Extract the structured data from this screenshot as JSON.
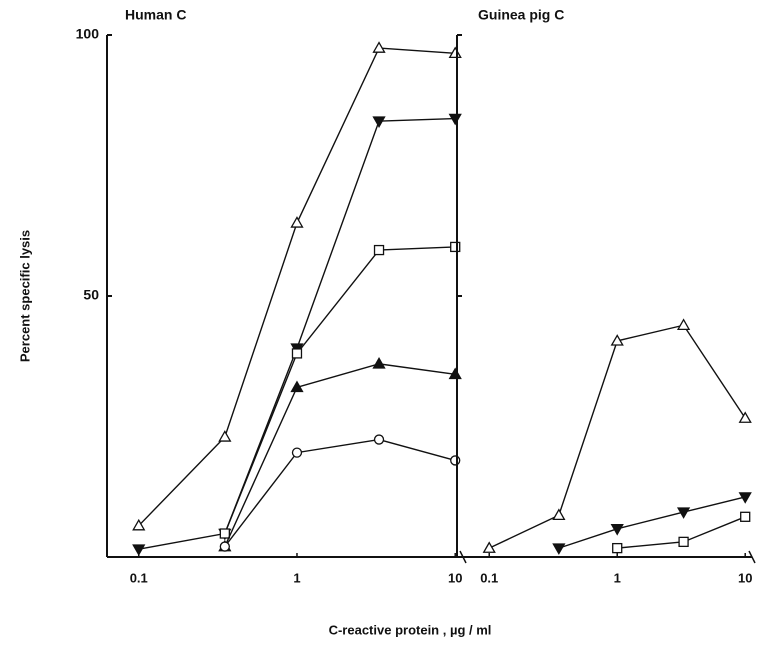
{
  "chart_data": [
    {
      "type": "line",
      "title": "Human C",
      "ylabel": "Percent specific lysis",
      "xlabel": "C-reactive protein , µg / ml",
      "xscale": "log",
      "xlim": [
        0.063,
        11.2
      ],
      "xticks": [
        0.1,
        1,
        10
      ],
      "ylim": [
        0,
        100
      ],
      "yticks": [
        50,
        100
      ],
      "show_ytick_labels": true,
      "x": [
        0.1,
        0.35,
        1,
        3.3,
        10
      ],
      "series": [
        {
          "marker": "triangle-up-open",
          "color": "#111111",
          "values": [
            6,
            23,
            64,
            97.5,
            96.5
          ]
        },
        {
          "marker": "triangle-down-filled",
          "color": "#111111",
          "values": [
            1.5,
            4.5,
            40,
            83.5,
            84
          ]
        },
        {
          "marker": "square-open",
          "color": "#111111",
          "values": [
            null,
            4.5,
            39,
            58.8,
            59.4
          ]
        },
        {
          "marker": "triangle-up-filled",
          "color": "#111111",
          "values": [
            null,
            2,
            32.5,
            37,
            35
          ]
        },
        {
          "marker": "circle-open",
          "color": "#111111",
          "values": [
            null,
            2,
            20,
            22.5,
            18.5
          ]
        }
      ]
    },
    {
      "type": "line",
      "title": "Guinea pig C",
      "xscale": "log",
      "xlim": [
        0.056,
        11.3
      ],
      "xticks": [
        0.1,
        1,
        10
      ],
      "ylim": [
        0,
        100
      ],
      "yticks": [
        50,
        100
      ],
      "show_ytick_labels": false,
      "x": [
        0.1,
        0.35,
        1,
        3.3,
        10
      ],
      "series": [
        {
          "marker": "triangle-up-open",
          "color": "#111111",
          "values": [
            1.7,
            8,
            41.4,
            44.4,
            26.6
          ]
        },
        {
          "marker": "triangle-down-filled",
          "color": "#111111",
          "values": [
            null,
            1.7,
            5.4,
            8.6,
            11.5
          ]
        },
        {
          "marker": "square-open",
          "color": "#111111",
          "values": [
            null,
            null,
            1.7,
            2.9,
            7.7
          ]
        }
      ]
    }
  ]
}
